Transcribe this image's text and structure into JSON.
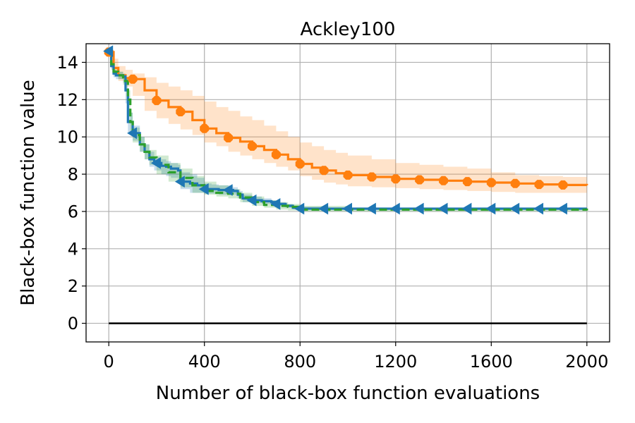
{
  "chart_data": {
    "type": "line",
    "title": "Ackley100",
    "xlabel": "Number of black-box function evaluations",
    "ylabel": "Black-box function value",
    "xlim": [
      -95,
      2095
    ],
    "ylim": [
      -1,
      15
    ],
    "xticks": [
      0,
      400,
      800,
      1200,
      1600,
      2000
    ],
    "yticks": [
      0,
      2,
      4,
      6,
      8,
      10,
      12,
      14
    ],
    "grid": true,
    "reference_line": {
      "y": 0,
      "x_range": [
        0,
        2000
      ],
      "color": "#000000"
    },
    "series": [
      {
        "color": "#ff7f0e",
        "linestyle": "solid",
        "marker": "octagon",
        "band": true,
        "marker_x": [
          0,
          100,
          200,
          300,
          400,
          500,
          600,
          700,
          800,
          900,
          1000,
          1100,
          1200,
          1300,
          1400,
          1500,
          1600,
          1700,
          1800,
          1900
        ],
        "x": [
          0,
          20,
          40,
          70,
          100,
          150,
          200,
          250,
          300,
          350,
          400,
          450,
          500,
          550,
          600,
          650,
          700,
          750,
          800,
          850,
          900,
          950,
          1000,
          1100,
          1200,
          1300,
          1400,
          1500,
          1600,
          1700,
          1800,
          1900,
          2000
        ],
        "y": [
          14.55,
          13.7,
          13.3,
          13.15,
          13.1,
          12.5,
          11.95,
          11.6,
          11.35,
          10.9,
          10.45,
          10.2,
          9.95,
          9.75,
          9.5,
          9.3,
          9.05,
          8.8,
          8.55,
          8.35,
          8.2,
          8.05,
          7.95,
          7.85,
          7.75,
          7.7,
          7.65,
          7.6,
          7.55,
          7.5,
          7.45,
          7.42,
          7.4
        ],
        "band_upper": [
          14.55,
          14.2,
          13.8,
          13.6,
          13.4,
          13.2,
          12.9,
          12.7,
          12.5,
          12.2,
          11.9,
          11.6,
          11.4,
          11.1,
          10.9,
          10.6,
          10.3,
          10.0,
          9.7,
          9.5,
          9.3,
          9.15,
          9.0,
          8.8,
          8.6,
          8.5,
          8.4,
          8.3,
          8.1,
          7.95,
          7.9,
          7.85,
          7.85
        ],
        "band_lower": [
          14.55,
          13.4,
          13.0,
          12.7,
          12.2,
          11.4,
          11.0,
          10.7,
          10.4,
          10.1,
          9.7,
          9.5,
          9.2,
          9.0,
          8.8,
          8.6,
          8.4,
          8.2,
          7.9,
          7.7,
          7.55,
          7.45,
          7.35,
          7.3,
          7.25,
          7.2,
          7.15,
          7.1,
          7.05,
          7.0,
          7.0,
          7.0,
          7.0
        ]
      },
      {
        "color": "#1f77b4",
        "linestyle": "solid",
        "marker": "triangle-left",
        "band": true,
        "marker_x": [
          0,
          100,
          200,
          300,
          400,
          500,
          600,
          700,
          800,
          900,
          1000,
          1100,
          1200,
          1300,
          1400,
          1500,
          1600,
          1700,
          1800,
          1900
        ],
        "x": [
          0,
          10,
          20,
          30,
          60,
          70,
          80,
          90,
          100,
          130,
          150,
          170,
          190,
          220,
          240,
          260,
          290,
          300,
          340,
          370,
          400,
          430,
          460,
          520,
          540,
          560,
          600,
          640,
          680,
          700,
          740,
          770,
          800,
          900,
          1000,
          2000
        ],
        "y": [
          14.6,
          13.8,
          13.4,
          13.3,
          13.25,
          12.5,
          10.8,
          10.8,
          10.2,
          9.6,
          9.2,
          8.8,
          8.6,
          8.45,
          8.4,
          8.3,
          8.2,
          7.6,
          7.5,
          7.4,
          7.2,
          7.2,
          7.15,
          7.1,
          6.9,
          6.7,
          6.6,
          6.55,
          6.5,
          6.4,
          6.3,
          6.2,
          6.15,
          6.15,
          6.15,
          6.15
        ],
        "band_upper": [
          14.6,
          14.0,
          13.6,
          13.5,
          13.4,
          13.1,
          11.5,
          11.3,
          10.6,
          10.0,
          9.6,
          9.2,
          8.9,
          8.8,
          8.7,
          8.6,
          8.5,
          8.1,
          8.0,
          7.8,
          7.5,
          7.45,
          7.4,
          7.3,
          7.1,
          6.9,
          6.8,
          6.7,
          6.6,
          6.5,
          6.4,
          6.3,
          6.25,
          6.2,
          6.2,
          6.2
        ],
        "band_lower": [
          14.6,
          13.6,
          13.2,
          13.1,
          12.9,
          11.8,
          10.2,
          10.1,
          9.8,
          9.2,
          8.8,
          8.4,
          8.2,
          8.0,
          7.9,
          7.8,
          7.6,
          7.2,
          7.0,
          7.0,
          6.95,
          6.95,
          6.9,
          6.9,
          6.7,
          6.5,
          6.45,
          6.4,
          6.35,
          6.3,
          6.2,
          6.12,
          6.1,
          6.1,
          6.1,
          6.1
        ]
      },
      {
        "color": "#2ca02c",
        "linestyle": "dashed",
        "marker": "none",
        "band": true,
        "x": [
          0,
          10,
          20,
          40,
          60,
          80,
          90,
          100,
          130,
          150,
          170,
          200,
          250,
          300,
          350,
          400,
          450,
          500,
          550,
          600,
          650,
          700,
          750,
          800,
          1000,
          2000
        ],
        "y": [
          14.6,
          13.9,
          13.5,
          13.3,
          13.0,
          12.0,
          10.8,
          10.1,
          9.6,
          9.2,
          8.9,
          8.5,
          8.1,
          7.8,
          7.4,
          7.1,
          7.0,
          6.95,
          6.75,
          6.5,
          6.35,
          6.3,
          6.25,
          6.1,
          6.1,
          6.05
        ],
        "band_upper": [
          14.6,
          14.1,
          13.7,
          13.5,
          13.2,
          12.5,
          11.3,
          10.5,
          10.0,
          9.6,
          9.3,
          9.0,
          8.6,
          8.3,
          7.9,
          7.6,
          7.4,
          7.2,
          7.0,
          6.8,
          6.6,
          6.5,
          6.4,
          6.3,
          6.2,
          6.15
        ],
        "band_lower": [
          14.6,
          13.7,
          13.3,
          13.1,
          12.8,
          11.5,
          10.3,
          9.7,
          9.2,
          8.8,
          8.5,
          8.0,
          7.6,
          7.3,
          7.0,
          6.9,
          6.8,
          6.7,
          6.5,
          6.3,
          6.2,
          6.1,
          6.05,
          6.0,
          6.0,
          5.95
        ]
      }
    ]
  }
}
